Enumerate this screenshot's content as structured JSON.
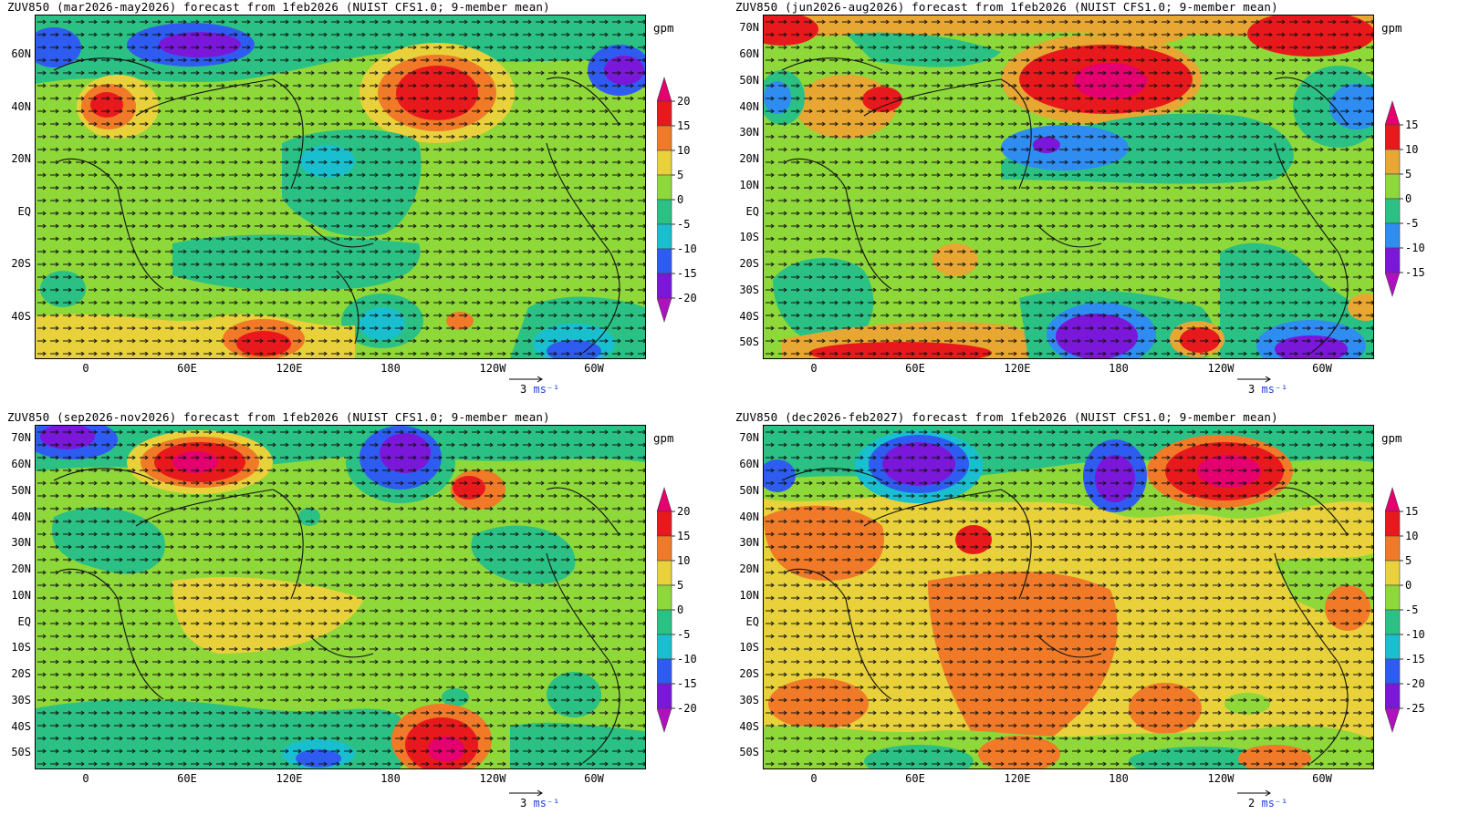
{
  "panels": [
    {
      "title": "ZUV850 (mar2026-may2026) forecast from 1feb2026 (NUIST CFS1.0; 9-member mean)",
      "unit": "gpm",
      "y_labels": [
        "60N",
        "40N",
        "20N",
        "EQ",
        "20S",
        "40S"
      ],
      "x_labels": [
        "0",
        "60E",
        "120E",
        "180",
        "120W",
        "60W"
      ],
      "colorbar_levels": [
        "20",
        "15",
        "10",
        "5",
        "0",
        "-5",
        "-10",
        "-15",
        "-20"
      ],
      "colorbar_colors": [
        "#e4006e",
        "#e8191c",
        "#f07a28",
        "#e8d13a",
        "#8ed83a",
        "#2bc184",
        "#19bfcf",
        "#2f5cf0",
        "#7a17d8",
        "#b011bf"
      ],
      "ref_vector": {
        "value": "3",
        "unit": "ms⁻¹"
      }
    },
    {
      "title": "ZUV850 (jun2026-aug2026) forecast from 1feb2026 (NUIST CFS1.0; 9-member mean)",
      "unit": "gpm",
      "y_labels": [
        "70N",
        "60N",
        "50N",
        "40N",
        "30N",
        "20N",
        "10N",
        "EQ",
        "10S",
        "20S",
        "30S",
        "40S",
        "50S"
      ],
      "x_labels": [
        "0",
        "60E",
        "120E",
        "180",
        "120W",
        "60W"
      ],
      "colorbar_levels": [
        "15",
        "10",
        "5",
        "0",
        "-5",
        "-10",
        "-15"
      ],
      "colorbar_colors": [
        "#e4006e",
        "#e8191c",
        "#e8a633",
        "#8ed83a",
        "#2bc184",
        "#2f8cf0",
        "#7a17d8",
        "#b011bf"
      ],
      "ref_vector": {
        "value": "3",
        "unit": "ms⁻¹"
      }
    },
    {
      "title": "ZUV850 (sep2026-nov2026) forecast from 1feb2026 (NUIST CFS1.0; 9-member mean)",
      "unit": "gpm",
      "y_labels": [
        "70N",
        "60N",
        "50N",
        "40N",
        "30N",
        "20N",
        "10N",
        "EQ",
        "10S",
        "20S",
        "30S",
        "40S",
        "50S"
      ],
      "x_labels": [
        "0",
        "60E",
        "120E",
        "180",
        "120W",
        "60W"
      ],
      "colorbar_levels": [
        "20",
        "15",
        "10",
        "5",
        "0",
        "-5",
        "-10",
        "-15",
        "-20"
      ],
      "colorbar_colors": [
        "#e4006e",
        "#e8191c",
        "#f07a28",
        "#e8d13a",
        "#8ed83a",
        "#2bc184",
        "#19bfcf",
        "#2f5cf0",
        "#7a17d8",
        "#b011bf"
      ],
      "ref_vector": {
        "value": "3",
        "unit": "ms⁻¹"
      }
    },
    {
      "title": "ZUV850 (dec2026-feb2027) forecast from 1feb2026 (NUIST CFS1.0; 9-member mean)",
      "unit": "gpm",
      "y_labels": [
        "70N",
        "60N",
        "50N",
        "40N",
        "30N",
        "20N",
        "10N",
        "EQ",
        "10S",
        "20S",
        "30S",
        "40S",
        "50S"
      ],
      "x_labels": [
        "0",
        "60E",
        "120E",
        "180",
        "120W",
        "60W"
      ],
      "colorbar_levels": [
        "15",
        "10",
        "5",
        "0",
        "-5",
        "-10",
        "-15",
        "-20",
        "-25"
      ],
      "colorbar_colors": [
        "#e4006e",
        "#e8191c",
        "#f07a28",
        "#e8d13a",
        "#8ed83a",
        "#2bc184",
        "#19bfcf",
        "#2f5cf0",
        "#7a17d8",
        "#b011bf"
      ],
      "ref_vector": {
        "value": "2",
        "unit": "ms⁻¹"
      }
    }
  ]
}
